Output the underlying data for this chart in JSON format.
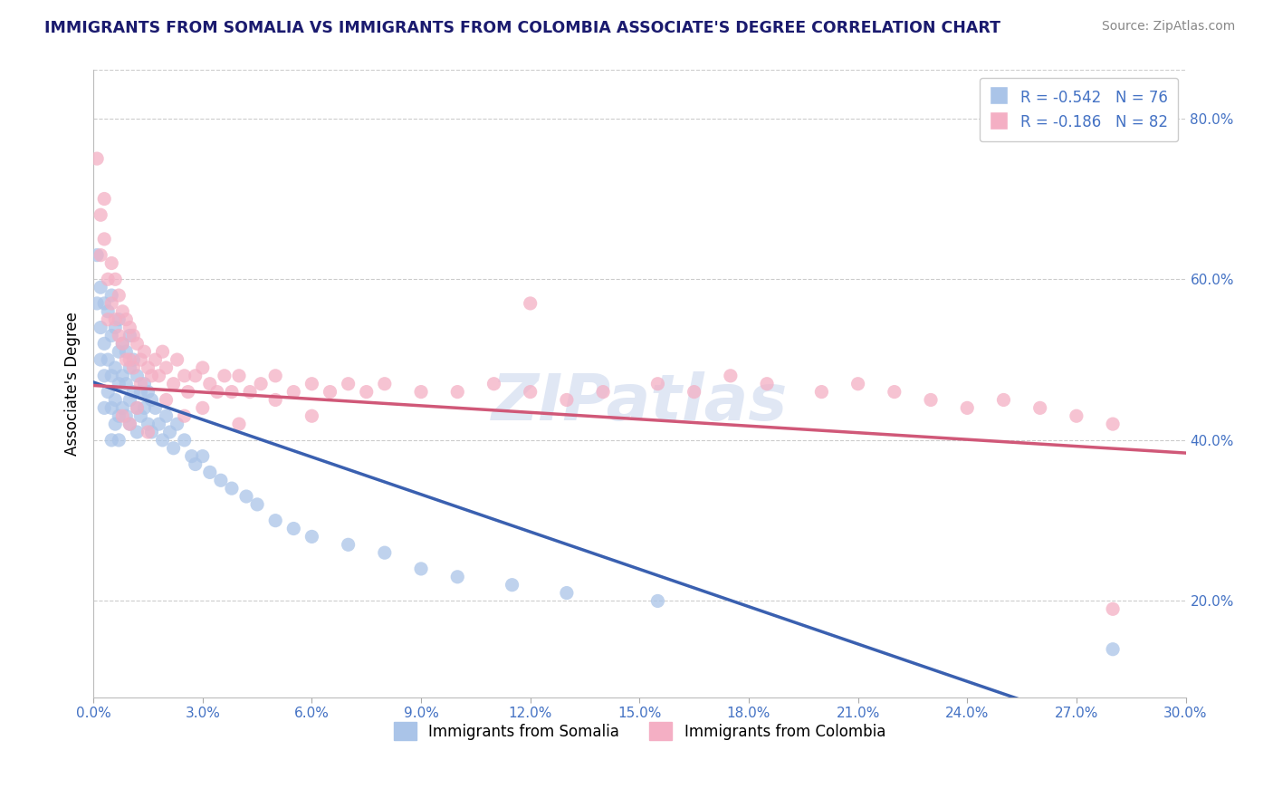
{
  "title": "IMMIGRANTS FROM SOMALIA VS IMMIGRANTS FROM COLOMBIA ASSOCIATE'S DEGREE CORRELATION CHART",
  "source": "Source: ZipAtlas.com",
  "ylabel": "Associate's Degree",
  "xlabel": "",
  "xlim": [
    0.0,
    0.3
  ],
  "ylim": [
    0.08,
    0.86
  ],
  "xticks": [
    0.0,
    0.03,
    0.06,
    0.09,
    0.12,
    0.15,
    0.18,
    0.21,
    0.24,
    0.27,
    0.3
  ],
  "yticks_right": [
    0.2,
    0.4,
    0.6,
    0.8
  ],
  "legend_entry1": "R = -0.542   N = 76",
  "legend_entry2": "R = -0.186   N = 82",
  "legend_label1": "Immigrants from Somalia",
  "legend_label2": "Immigrants from Colombia",
  "color_somalia": "#aac4e8",
  "color_colombia": "#f4afc4",
  "line_color_somalia": "#3a60b0",
  "line_color_colombia": "#d05878",
  "background_color": "#ffffff",
  "watermark": "ZIPatlas",
  "watermark_color": "#ccd8ee",
  "title_color": "#1a1a6e",
  "axis_label_color": "#4472c4",
  "somalia_x": [
    0.001,
    0.001,
    0.002,
    0.002,
    0.002,
    0.003,
    0.003,
    0.003,
    0.003,
    0.004,
    0.004,
    0.004,
    0.005,
    0.005,
    0.005,
    0.005,
    0.005,
    0.006,
    0.006,
    0.006,
    0.006,
    0.007,
    0.007,
    0.007,
    0.007,
    0.007,
    0.008,
    0.008,
    0.008,
    0.009,
    0.009,
    0.009,
    0.01,
    0.01,
    0.01,
    0.01,
    0.011,
    0.011,
    0.012,
    0.012,
    0.012,
    0.013,
    0.013,
    0.014,
    0.014,
    0.015,
    0.015,
    0.016,
    0.016,
    0.017,
    0.018,
    0.019,
    0.02,
    0.021,
    0.022,
    0.023,
    0.025,
    0.027,
    0.028,
    0.03,
    0.032,
    0.035,
    0.038,
    0.042,
    0.045,
    0.05,
    0.055,
    0.06,
    0.07,
    0.08,
    0.09,
    0.1,
    0.115,
    0.13,
    0.155,
    0.28
  ],
  "somalia_y": [
    0.63,
    0.57,
    0.59,
    0.54,
    0.5,
    0.57,
    0.52,
    0.48,
    0.44,
    0.56,
    0.5,
    0.46,
    0.58,
    0.53,
    0.48,
    0.44,
    0.4,
    0.54,
    0.49,
    0.45,
    0.42,
    0.55,
    0.51,
    0.47,
    0.43,
    0.4,
    0.52,
    0.48,
    0.44,
    0.51,
    0.47,
    0.43,
    0.53,
    0.49,
    0.45,
    0.42,
    0.5,
    0.46,
    0.48,
    0.44,
    0.41,
    0.46,
    0.43,
    0.47,
    0.44,
    0.46,
    0.42,
    0.45,
    0.41,
    0.44,
    0.42,
    0.4,
    0.43,
    0.41,
    0.39,
    0.42,
    0.4,
    0.38,
    0.37,
    0.38,
    0.36,
    0.35,
    0.34,
    0.33,
    0.32,
    0.3,
    0.29,
    0.28,
    0.27,
    0.26,
    0.24,
    0.23,
    0.22,
    0.21,
    0.2,
    0.14
  ],
  "colombia_x": [
    0.001,
    0.002,
    0.002,
    0.003,
    0.003,
    0.004,
    0.004,
    0.005,
    0.005,
    0.006,
    0.006,
    0.007,
    0.007,
    0.008,
    0.008,
    0.009,
    0.009,
    0.01,
    0.01,
    0.011,
    0.011,
    0.012,
    0.013,
    0.013,
    0.014,
    0.015,
    0.016,
    0.017,
    0.018,
    0.019,
    0.02,
    0.022,
    0.023,
    0.025,
    0.026,
    0.028,
    0.03,
    0.032,
    0.034,
    0.036,
    0.038,
    0.04,
    0.043,
    0.046,
    0.05,
    0.055,
    0.06,
    0.065,
    0.07,
    0.075,
    0.08,
    0.09,
    0.1,
    0.11,
    0.12,
    0.13,
    0.14,
    0.155,
    0.165,
    0.175,
    0.185,
    0.2,
    0.21,
    0.22,
    0.23,
    0.24,
    0.25,
    0.26,
    0.27,
    0.28,
    0.008,
    0.01,
    0.012,
    0.015,
    0.02,
    0.025,
    0.03,
    0.04,
    0.05,
    0.06,
    0.12,
    0.28
  ],
  "colombia_y": [
    0.75,
    0.68,
    0.63,
    0.7,
    0.65,
    0.6,
    0.55,
    0.62,
    0.57,
    0.6,
    0.55,
    0.58,
    0.53,
    0.56,
    0.52,
    0.55,
    0.5,
    0.54,
    0.5,
    0.53,
    0.49,
    0.52,
    0.5,
    0.47,
    0.51,
    0.49,
    0.48,
    0.5,
    0.48,
    0.51,
    0.49,
    0.47,
    0.5,
    0.48,
    0.46,
    0.48,
    0.49,
    0.47,
    0.46,
    0.48,
    0.46,
    0.48,
    0.46,
    0.47,
    0.48,
    0.46,
    0.47,
    0.46,
    0.47,
    0.46,
    0.47,
    0.46,
    0.46,
    0.47,
    0.46,
    0.45,
    0.46,
    0.47,
    0.46,
    0.48,
    0.47,
    0.46,
    0.47,
    0.46,
    0.45,
    0.44,
    0.45,
    0.44,
    0.43,
    0.42,
    0.43,
    0.42,
    0.44,
    0.41,
    0.45,
    0.43,
    0.44,
    0.42,
    0.45,
    0.43,
    0.57,
    0.19
  ],
  "som_reg": [
    0.472,
    -1.55
  ],
  "col_reg": [
    0.468,
    -0.28
  ]
}
